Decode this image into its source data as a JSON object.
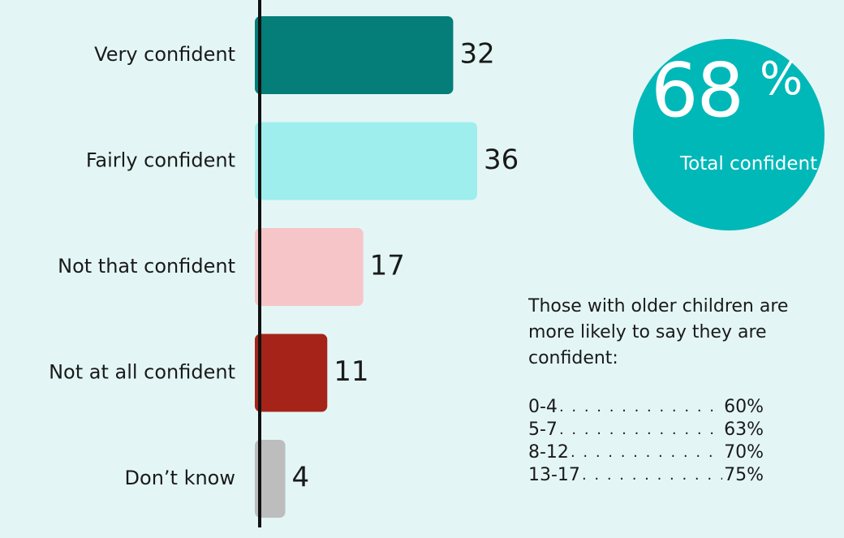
{
  "chart_data": {
    "type": "bar",
    "orientation": "horizontal",
    "categories": [
      "Very confident",
      "Fairly confident",
      "Not that confident",
      "Not at all confident",
      "Don’t know"
    ],
    "values": [
      32,
      36,
      17,
      11,
      4
    ],
    "colors": [
      "#057d78",
      "#9eeeee",
      "#f5c5c8",
      "#a52319",
      "#bdbdbd"
    ],
    "xlim": [
      0,
      36
    ],
    "grid": false,
    "data_labels": true
  },
  "callout": {
    "value": "68",
    "unit": "%",
    "caption": "Total confident",
    "color": "#00b8b8"
  },
  "note": {
    "text_line1": "Those with older children are",
    "text_line2": "more likely to say they are",
    "text_line3": "confident:",
    "rows": [
      {
        "range": "0-4",
        "value": "60%"
      },
      {
        "range": "5-7",
        "value": "63%"
      },
      {
        "range": "8-12",
        "value": "70%"
      },
      {
        "range": "13-17",
        "value": "75%"
      }
    ]
  }
}
